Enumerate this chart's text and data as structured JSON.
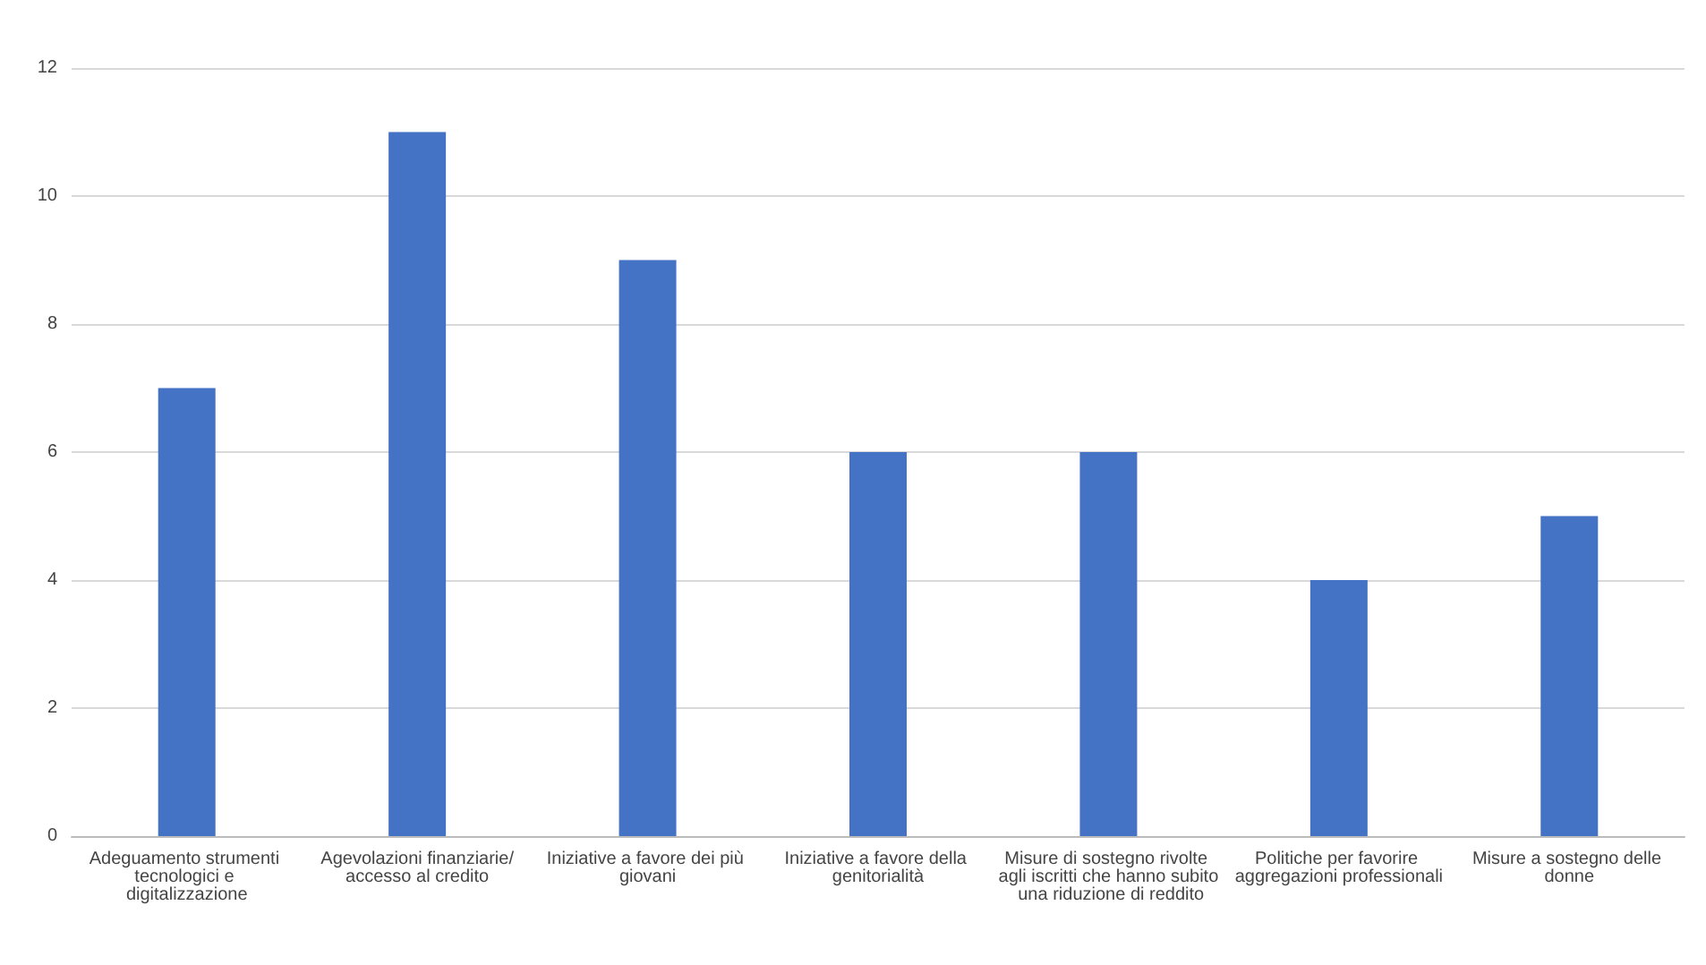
{
  "chart_data": {
    "type": "bar",
    "categories": [
      "Adeguamento strumenti tecnologici e digitalizzazione",
      "Agevolazioni finanziarie/accesso al credito",
      "Iniziative a favore dei più giovani",
      "Iniziative a favore della genitorialità",
      "Misure di sostegno rivolte agli iscritti che hanno subito una riduzione di reddito",
      "Politiche per favorire aggregazioni professionali",
      "Misure a sostegno delle donne"
    ],
    "values": [
      7,
      11,
      9,
      6,
      6,
      4,
      5
    ],
    "color": "#4472c4",
    "ylim": [
      0,
      12
    ],
    "yticks": [
      0,
      2,
      4,
      6,
      8,
      10,
      12
    ],
    "grid": "y"
  }
}
